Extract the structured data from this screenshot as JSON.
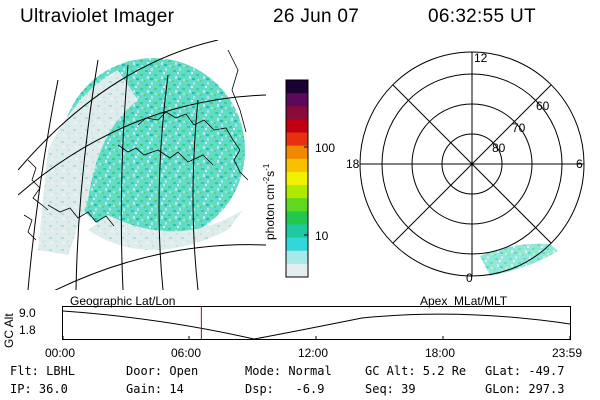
{
  "header": {
    "title": "Ultraviolet Imager",
    "date": "26 Jun 07",
    "time": "06:32:55 UT"
  },
  "colorbar": {
    "label": "photon cm⁻²s⁻¹",
    "label_main": "photon cm",
    "label_exp1": "-2",
    "label_mid": "s",
    "label_exp2": "-1",
    "ticks": [
      "100",
      "10"
    ],
    "colors": [
      "#1a0033",
      "#5a0a5a",
      "#8a0a3a",
      "#c00010",
      "#e83010",
      "#f08800",
      "#f8c000",
      "#f0f000",
      "#b0e800",
      "#60d820",
      "#20c850",
      "#20c8a0",
      "#30d8d8",
      "#a8e8e8",
      "#e4eeee"
    ]
  },
  "polar_plot": {
    "mlt_labels": {
      "top": "12",
      "left": "18",
      "right": "6",
      "bottom": "0"
    },
    "lat_labels": [
      "60",
      "70",
      "80"
    ]
  },
  "timeline": {
    "left_title": "Geographic Lat/Lon",
    "right_title": "Apex  MLat/MLT",
    "y_axis_label": "GC Alt",
    "y_ticks": [
      "9.0",
      "1.8"
    ],
    "x_ticks": [
      "00:00",
      "06:00",
      "12:00",
      "18:00",
      "23:59"
    ],
    "current_time_hours": 6.55
  },
  "info": {
    "flt": "Flt: LBHL",
    "ip": "IP: 36.0",
    "door": "Door: Open",
    "gain": "Gain: 14",
    "mode": "Mode: Normal",
    "dsp": "Dsp:   -6.9",
    "gc_alt": "GC Alt: 5.2 Re",
    "seq": "Seq: 39",
    "glat": "GLat: -49.7",
    "glon": "GLon: 297.3"
  }
}
